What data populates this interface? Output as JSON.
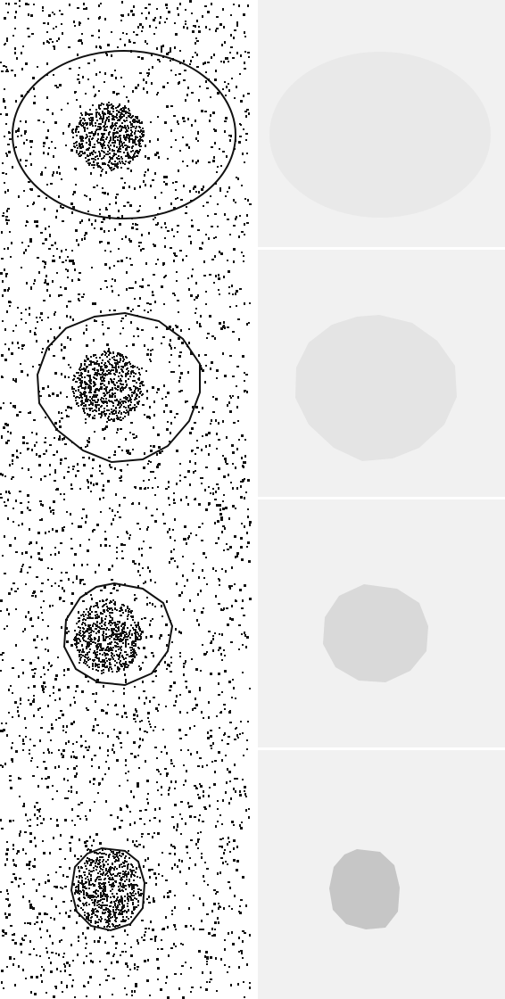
{
  "figure": {
    "description_label": "",
    "rows": [
      {
        "stage": 1,
        "contour_shape": "ellipse",
        "region_fill": "#e9e9e9"
      },
      {
        "stage": 2,
        "contour_shape": "polygon",
        "region_fill": "#e4e4e4"
      },
      {
        "stage": 3,
        "contour_shape": "polygon",
        "region_fill": "#d9d9d9"
      },
      {
        "stage": 4,
        "contour_shape": "polygon",
        "region_fill": "#c6c6c6"
      }
    ],
    "colors": {
      "left_background": "#ffffff",
      "noise_dots": "#111111",
      "contour_stroke": "#111111",
      "right_background": "#f1f1f1",
      "separator": "#ffffff"
    }
  }
}
